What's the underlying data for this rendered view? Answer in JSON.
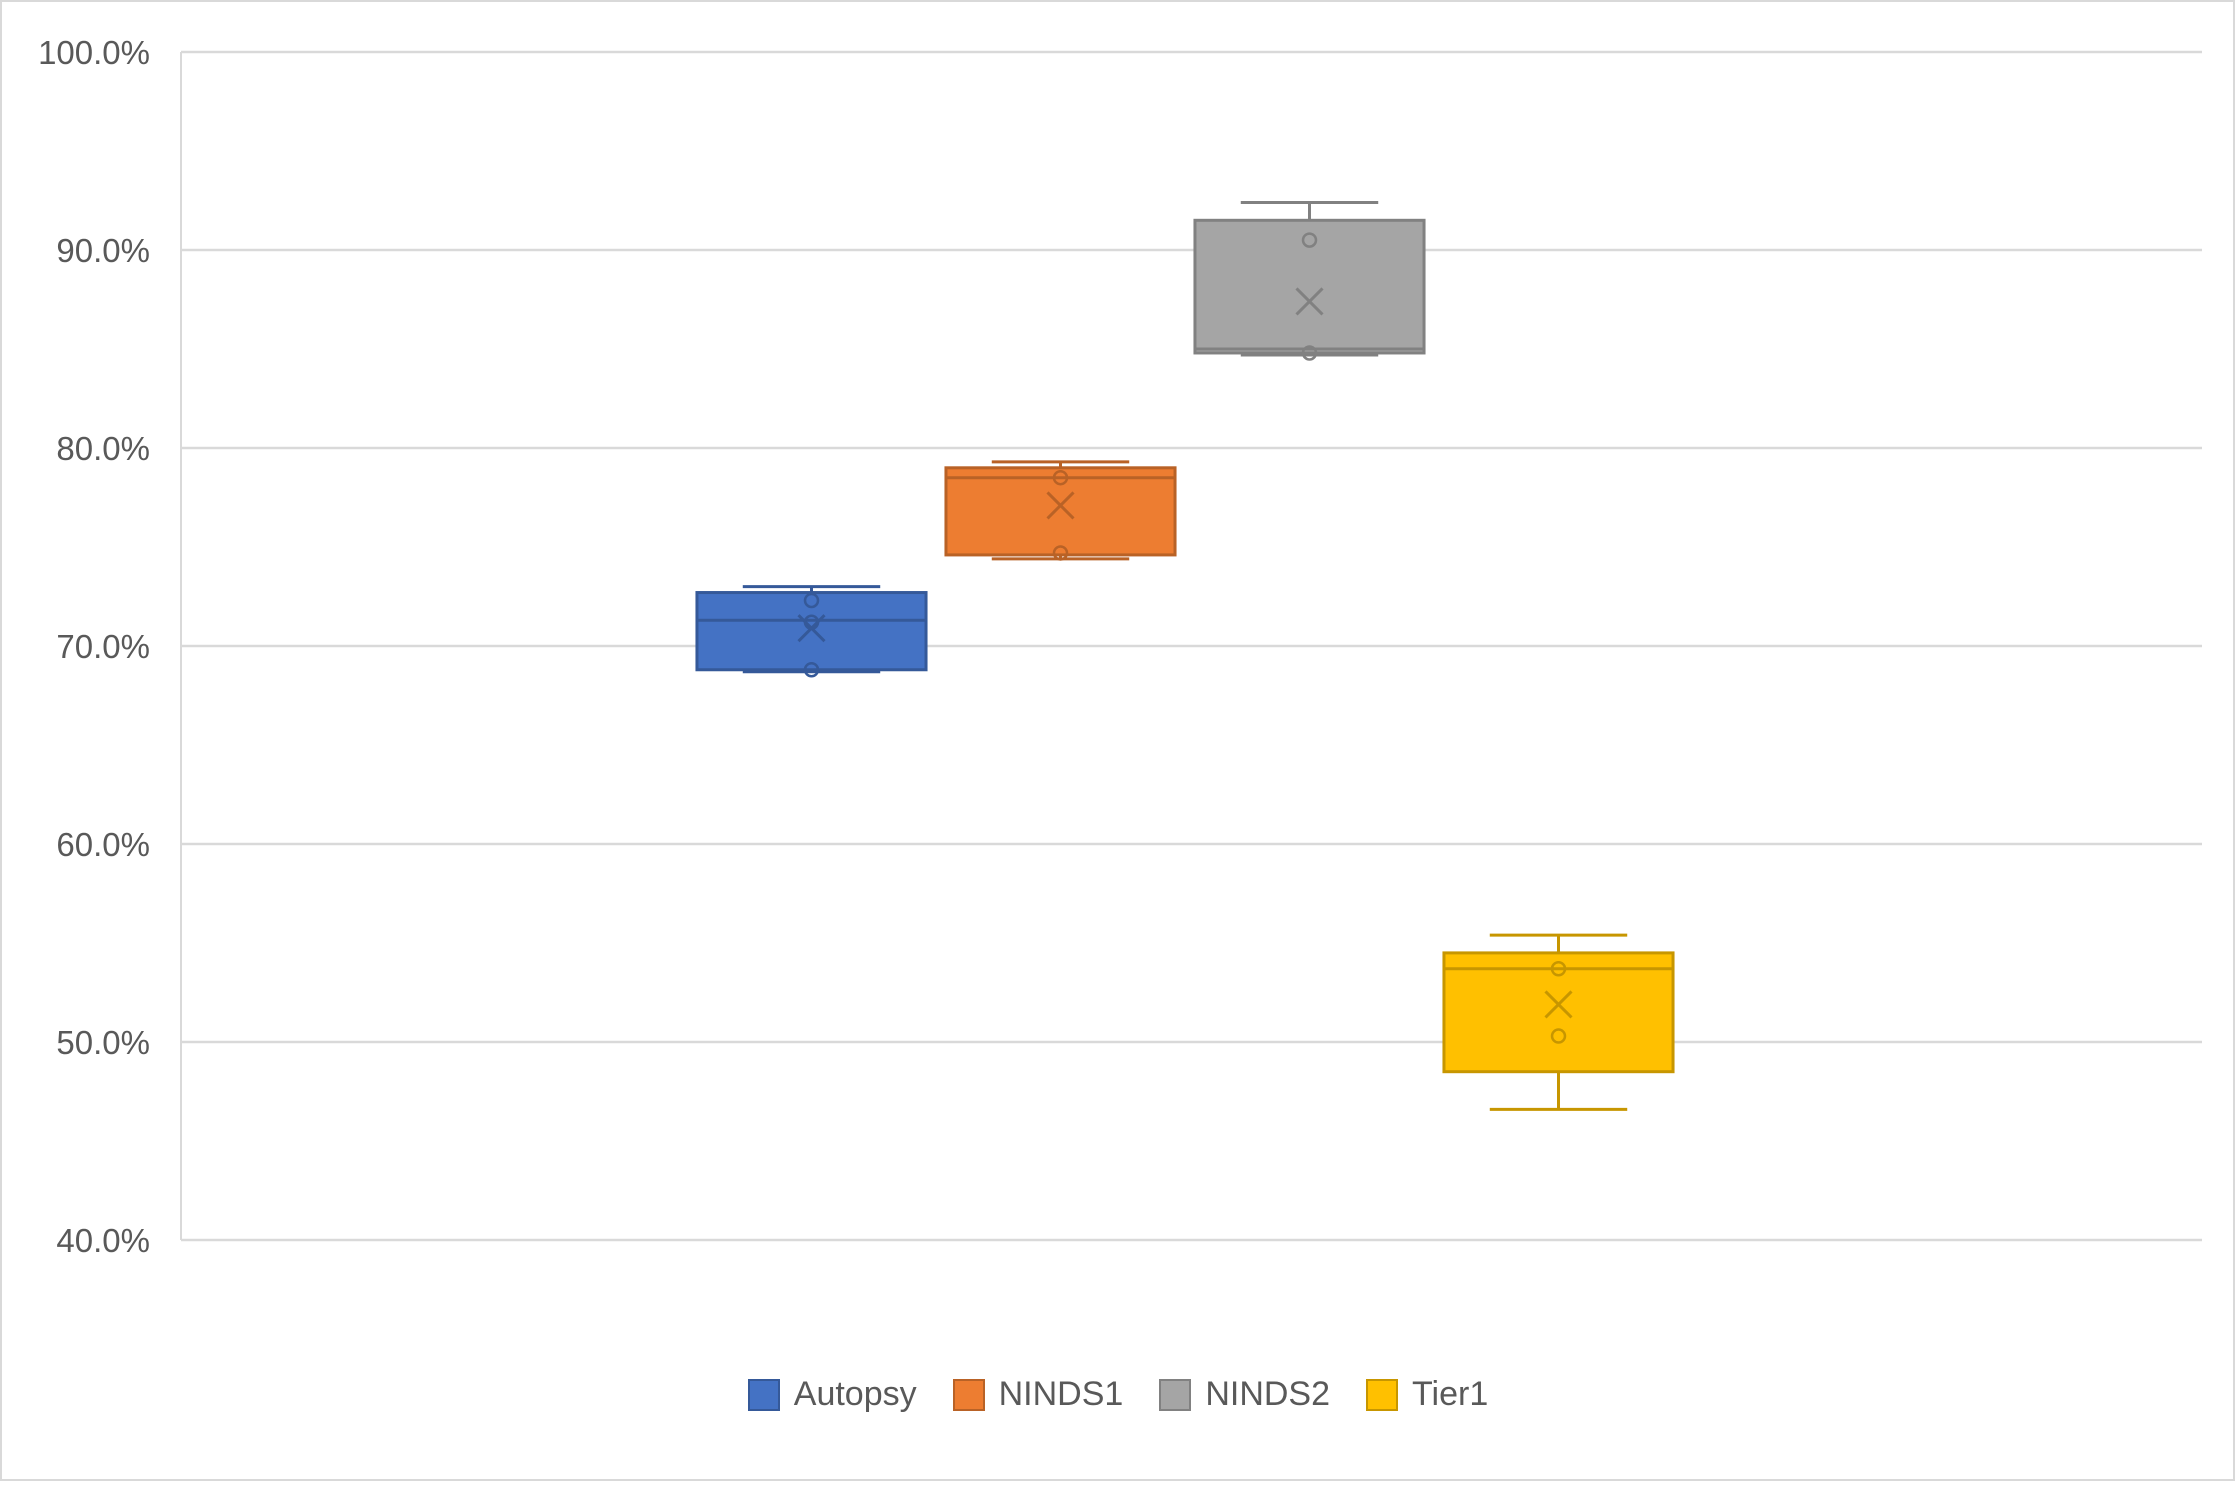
{
  "chart_data": {
    "type": "box",
    "title": "",
    "xlabel": "",
    "ylabel": "",
    "ylim": [
      0.4,
      1.0
    ],
    "ytick_format": "percent_1dp",
    "yticks": [
      "100.0%",
      "90.0%",
      "80.0%",
      "70.0%",
      "60.0%",
      "50.0%",
      "40.0%"
    ],
    "grid": true,
    "legend_position": "bottom",
    "series": [
      {
        "name": "Autopsy",
        "color": "#4472C4",
        "min": 0.687,
        "q1": 0.688,
        "median": 0.713,
        "q3": 0.727,
        "max": 0.73,
        "mean": 0.709,
        "points": [
          0.688,
          0.712,
          0.723
        ]
      },
      {
        "name": "NINDS1",
        "color": "#ED7D31",
        "min": 0.744,
        "q1": 0.746,
        "median": 0.785,
        "q3": 0.79,
        "max": 0.793,
        "mean": 0.771,
        "points": [
          0.747,
          0.785
        ]
      },
      {
        "name": "NINDS2",
        "color": "#A5A5A5",
        "min": 0.847,
        "q1": 0.848,
        "median": 0.85,
        "q3": 0.915,
        "max": 0.924,
        "mean": 0.874,
        "points": [
          0.848,
          0.905
        ]
      },
      {
        "name": "Tier1",
        "color": "#FFC000",
        "min": 0.466,
        "q1": 0.485,
        "median": 0.537,
        "q3": 0.545,
        "max": 0.554,
        "mean": 0.519,
        "points": [
          0.503,
          0.537
        ]
      }
    ]
  }
}
